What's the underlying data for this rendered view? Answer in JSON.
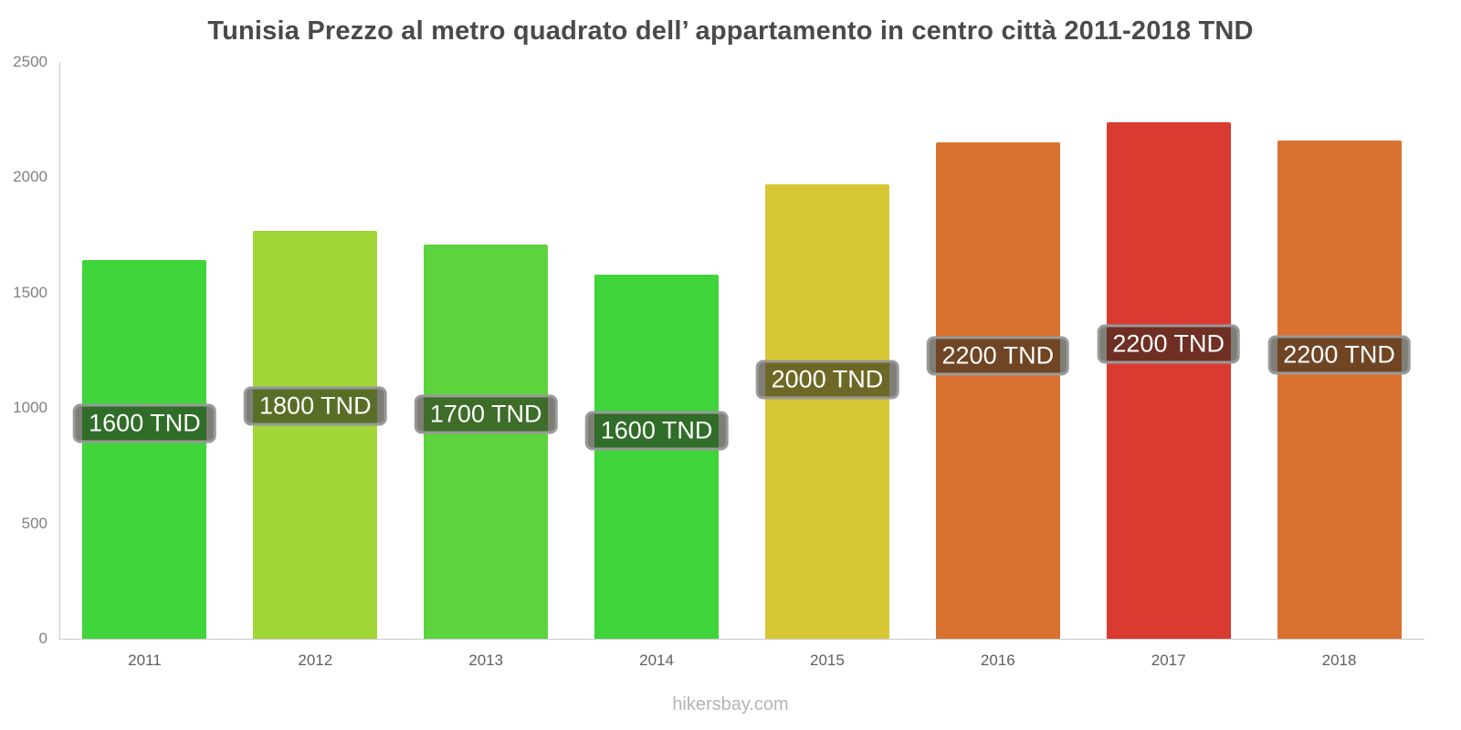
{
  "title": "Tunisia Prezzo al metro quadrato dell’ appartamento in centro città 2011-2018 TND",
  "footer": "hikersbay.com",
  "chart_data": {
    "type": "bar",
    "title": "Tunisia Prezzo al metro quadrato dell’ appartamento in centro città 2011-2018 TND",
    "categories": [
      "2011",
      "2012",
      "2013",
      "2014",
      "2015",
      "2016",
      "2017",
      "2018"
    ],
    "values": [
      1640,
      1770,
      1710,
      1580,
      1970,
      2150,
      2240,
      2160
    ],
    "bar_labels": [
      "1600 TND",
      "1800 TND",
      "1700 TND",
      "1600 TND",
      "2000 TND",
      "2200 TND",
      "2200 TND",
      "2200 TND"
    ],
    "bar_colors": [
      "#3ed43a",
      "#a0d636",
      "#5dd43d",
      "#3ed43a",
      "#d8c735",
      "#d97231",
      "#da3b30",
      "#d97231"
    ],
    "xlabel": "",
    "ylabel": "",
    "ylim": [
      0,
      2500
    ],
    "yticks": [
      0,
      500,
      1000,
      1500,
      2000,
      2500
    ],
    "grid": false,
    "legend": false,
    "label_style": {
      "text_color": "#ffffff",
      "box_background": "rgba(40,40,28,0.6)",
      "box_border": "#999999"
    },
    "axis_color": "#c9c9c9",
    "watermark": "hikersbay.com"
  }
}
